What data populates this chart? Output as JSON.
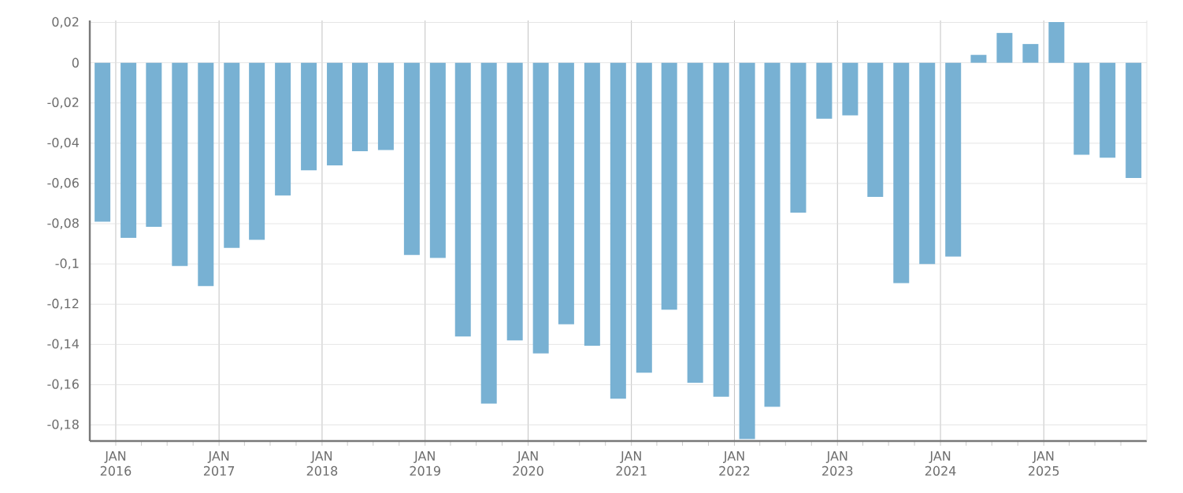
{
  "chart_data": {
    "type": "bar",
    "color": "#78b1d3",
    "grid": true,
    "x": [
      "2015-11-15",
      "2016-02-15",
      "2016-05-15",
      "2016-08-15",
      "2016-11-15",
      "2017-02-15",
      "2017-05-15",
      "2017-08-15",
      "2017-11-15",
      "2018-02-15",
      "2018-05-15",
      "2018-08-15",
      "2018-11-15",
      "2019-02-15",
      "2019-05-15",
      "2019-08-15",
      "2019-11-15",
      "2020-02-15",
      "2020-05-15",
      "2020-08-15",
      "2020-11-15",
      "2021-02-15",
      "2021-05-15",
      "2021-08-15",
      "2021-11-15",
      "2022-02-15",
      "2022-05-15",
      "2022-08-15",
      "2022-11-15",
      "2023-02-15",
      "2023-05-15",
      "2023-08-15",
      "2023-11-15",
      "2024-02-15",
      "2024-05-15",
      "2024-08-15",
      "2024-11-15",
      "2025-02-15",
      "2025-05-15",
      "2025-08-15",
      "2025-11-15"
    ],
    "values": [
      -0.079,
      -0.087,
      -0.0815,
      -0.101,
      -0.111,
      -0.092,
      -0.088,
      -0.066,
      -0.0535,
      -0.051,
      -0.044,
      -0.0434,
      -0.0955,
      -0.097,
      -0.136,
      -0.1694,
      -0.138,
      -0.1445,
      -0.13,
      -0.1406,
      -0.167,
      -0.154,
      -0.1227,
      -0.159,
      -0.166,
      -0.187,
      -0.171,
      -0.0745,
      -0.0278,
      -0.0262,
      -0.0667,
      -0.1095,
      -0.1,
      -0.0963,
      0.0039,
      0.0148,
      0.0093,
      0.0202,
      -0.0457,
      -0.0472,
      -0.0573
    ],
    "xlim": [
      "2015-10-01",
      "2026-01-01"
    ],
    "xticks": [
      {
        "value": "2016-01-01",
        "label": "JAN 2016"
      },
      {
        "value": "2016-04-01",
        "label": null
      },
      {
        "value": "2016-07-01",
        "label": null
      },
      {
        "value": "2016-10-01",
        "label": null
      },
      {
        "value": "2017-01-01",
        "label": "JAN 2017"
      },
      {
        "value": "2017-04-01",
        "label": null
      },
      {
        "value": "2017-07-01",
        "label": null
      },
      {
        "value": "2017-10-01",
        "label": null
      },
      {
        "value": "2018-01-01",
        "label": "JAN 2018"
      },
      {
        "value": "2018-04-01",
        "label": null
      },
      {
        "value": "2018-07-01",
        "label": null
      },
      {
        "value": "2018-10-01",
        "label": null
      },
      {
        "value": "2019-01-01",
        "label": "JAN 2019"
      },
      {
        "value": "2019-04-01",
        "label": null
      },
      {
        "value": "2019-07-01",
        "label": null
      },
      {
        "value": "2019-10-01",
        "label": null
      },
      {
        "value": "2020-01-01",
        "label": "JAN 2020"
      },
      {
        "value": "2020-04-01",
        "label": null
      },
      {
        "value": "2020-07-01",
        "label": null
      },
      {
        "value": "2020-10-01",
        "label": null
      },
      {
        "value": "2021-01-01",
        "label": "JAN 2021"
      },
      {
        "value": "2021-04-01",
        "label": null
      },
      {
        "value": "2021-07-01",
        "label": null
      },
      {
        "value": "2021-10-01",
        "label": null
      },
      {
        "value": "2022-01-01",
        "label": "JAN 2022"
      },
      {
        "value": "2022-04-01",
        "label": null
      },
      {
        "value": "2022-07-01",
        "label": null
      },
      {
        "value": "2022-10-01",
        "label": null
      },
      {
        "value": "2023-01-01",
        "label": "JAN 2023"
      },
      {
        "value": "2023-04-01",
        "label": null
      },
      {
        "value": "2023-07-01",
        "label": null
      },
      {
        "value": "2023-10-01",
        "label": null
      },
      {
        "value": "2024-01-01",
        "label": "JAN 2024"
      },
      {
        "value": "2024-04-01",
        "label": null
      },
      {
        "value": "2024-07-01",
        "label": null
      },
      {
        "value": "2024-10-01",
        "label": null
      },
      {
        "value": "2025-01-01",
        "label": "JAN 2025"
      },
      {
        "value": "2025-04-01",
        "label": null
      },
      {
        "value": "2025-07-01",
        "label": null
      },
      {
        "value": "2025-10-01",
        "label": null
      }
    ],
    "ylim": [
      -0.188,
      0.021
    ],
    "yticks": [
      {
        "value": 0.02,
        "label": "0,02"
      },
      0,
      {
        "value": -0.02,
        "label": "-0,02"
      },
      {
        "value": -0.04,
        "label": "-0,04"
      },
      {
        "value": -0.06,
        "label": "-0,06"
      },
      {
        "value": -0.08,
        "label": "-0,08"
      },
      {
        "value": -0.1,
        "label": "-0,1"
      },
      {
        "value": -0.12,
        "label": "-0,12"
      },
      {
        "value": -0.14,
        "label": "-0,14"
      },
      {
        "value": -0.16,
        "label": "-0,16"
      },
      {
        "value": -0.18,
        "label": "-0,18"
      }
    ]
  }
}
